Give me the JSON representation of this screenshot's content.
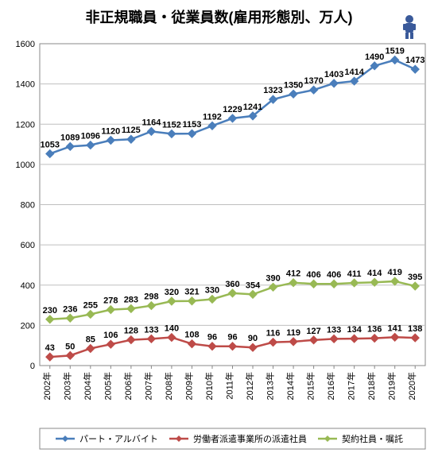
{
  "chart": {
    "type": "line",
    "title": "非正規職員・従業員数(雇用形態別、万人)",
    "title_fontsize": 18,
    "background_color": "#ffffff",
    "grid_color": "#bfbfbf",
    "border_color": "#888888",
    "plot_color": "#ffffff",
    "ylim": [
      0,
      1600
    ],
    "ytick_step": 200,
    "yticks": [
      0,
      200,
      400,
      600,
      800,
      1000,
      1200,
      1400,
      1600
    ],
    "categories": [
      "2002年",
      "2003年",
      "2004年",
      "2005年",
      "2006年",
      "2007年",
      "2008年",
      "2009年",
      "2010年",
      "2011年",
      "2012年",
      "2013年",
      "2014年",
      "2015年",
      "2016年",
      "2017年",
      "2018年",
      "2019年",
      "2020年"
    ],
    "series": [
      {
        "name": "パート・アルバイト",
        "color": "#4a7ebb",
        "marker": "diamond",
        "values": [
          1053,
          1089,
          1096,
          1120,
          1125,
          1164,
          1152,
          1153,
          1192,
          1229,
          1241,
          1323,
          1350,
          1370,
          1403,
          1414,
          1490,
          1519,
          1473
        ]
      },
      {
        "name": "労働者派遣事業所の派遣社員",
        "color": "#be4b48",
        "marker": "diamond",
        "values": [
          43,
          50,
          85,
          106,
          128,
          133,
          140,
          108,
          96,
          96,
          90,
          116,
          119,
          127,
          133,
          134,
          136,
          141,
          138
        ]
      },
      {
        "name": "契約社員・嘱託",
        "color": "#98b954",
        "marker": "diamond",
        "values": [
          230,
          236,
          255,
          278,
          283,
          298,
          320,
          321,
          330,
          360,
          354,
          390,
          412,
          406,
          406,
          411,
          414,
          419,
          395
        ]
      }
    ],
    "line_width": 2.5,
    "marker_size": 5,
    "label_fontsize": 11,
    "axis_fontsize": 11,
    "legend_fontsize": 11
  },
  "mascot": {
    "label": "mascot-icon",
    "color": "#3a5a9a"
  }
}
